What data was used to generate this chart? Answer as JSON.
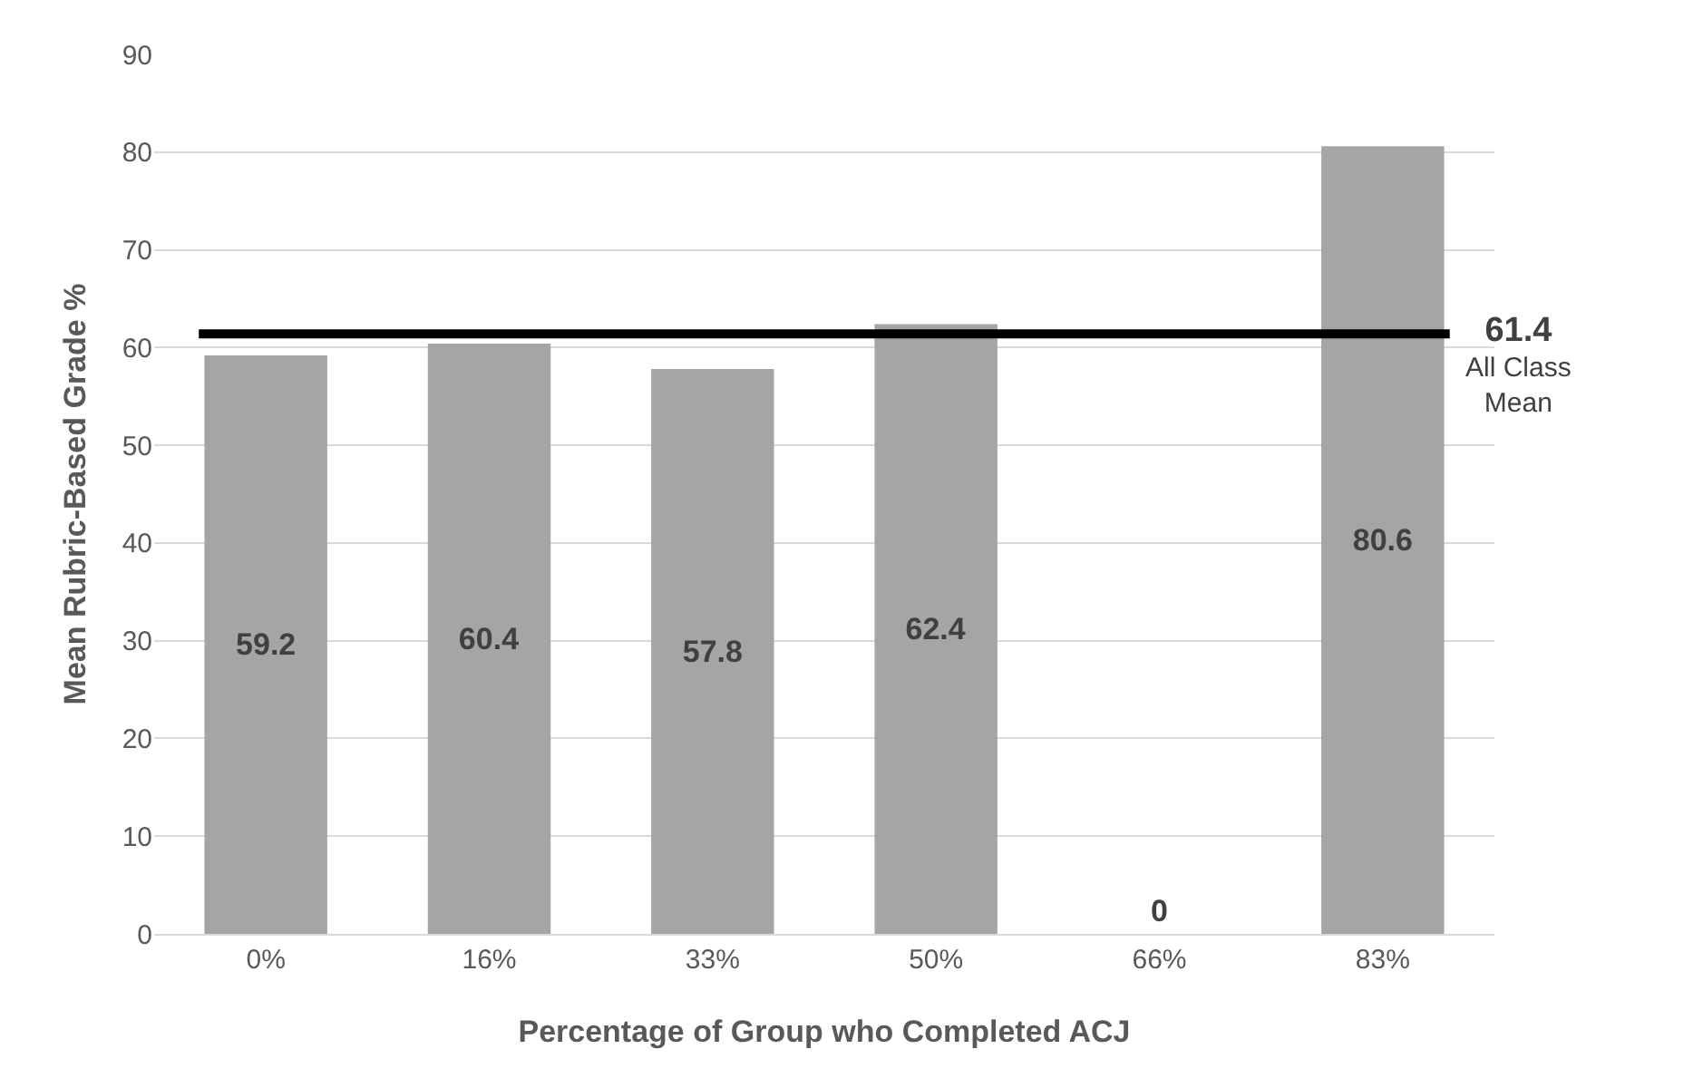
{
  "chart_data": {
    "type": "bar",
    "xlabel": "Percentage of Group who Completed ACJ",
    "ylabel": "Mean Rubric-Based Grade %",
    "categories": [
      "0%",
      "16%",
      "33%",
      "50%",
      "66%",
      "83%"
    ],
    "values": [
      59.2,
      60.4,
      57.8,
      62.4,
      0,
      80.6
    ],
    "color": "#a5a5a5",
    "data_labels": true,
    "ylim": [
      0,
      90
    ],
    "yticks": [
      0,
      10,
      20,
      30,
      40,
      50,
      60,
      70,
      80,
      90
    ],
    "grid": "y",
    "ref_lines": [
      {
        "axis": "y",
        "value": 61.4,
        "label": "61.4 All Class Mean",
        "color": "#000000"
      }
    ]
  }
}
